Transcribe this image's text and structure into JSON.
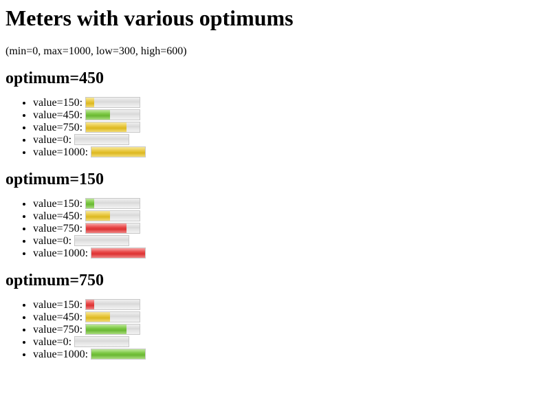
{
  "title": "Meters with various optimums",
  "subtitle": "(min=0, max=1000, low=300, high=600)",
  "meter_range": {
    "min": 0,
    "max": 1000
  },
  "colors": {
    "green": "#7cc844",
    "yellow": "#e8c840",
    "red": "#e84848",
    "track": "#dcdcdc"
  },
  "sections": [
    {
      "heading": "optimum=450",
      "items": [
        {
          "label": "value=150:",
          "value": 150,
          "color": "yellow"
        },
        {
          "label": "value=450:",
          "value": 450,
          "color": "green"
        },
        {
          "label": "value=750:",
          "value": 750,
          "color": "yellow"
        },
        {
          "label": "value=0:",
          "value": 0,
          "color": "yellow"
        },
        {
          "label": "value=1000:",
          "value": 1000,
          "color": "yellow"
        }
      ]
    },
    {
      "heading": "optimum=150",
      "items": [
        {
          "label": "value=150:",
          "value": 150,
          "color": "green"
        },
        {
          "label": "value=450:",
          "value": 450,
          "color": "yellow"
        },
        {
          "label": "value=750:",
          "value": 750,
          "color": "red"
        },
        {
          "label": "value=0:",
          "value": 0,
          "color": "green"
        },
        {
          "label": "value=1000:",
          "value": 1000,
          "color": "red"
        }
      ]
    },
    {
      "heading": "optimum=750",
      "items": [
        {
          "label": "value=150:",
          "value": 150,
          "color": "red"
        },
        {
          "label": "value=450:",
          "value": 450,
          "color": "yellow"
        },
        {
          "label": "value=750:",
          "value": 750,
          "color": "green"
        },
        {
          "label": "value=0:",
          "value": 0,
          "color": "red"
        },
        {
          "label": "value=1000:",
          "value": 1000,
          "color": "green"
        }
      ]
    }
  ]
}
